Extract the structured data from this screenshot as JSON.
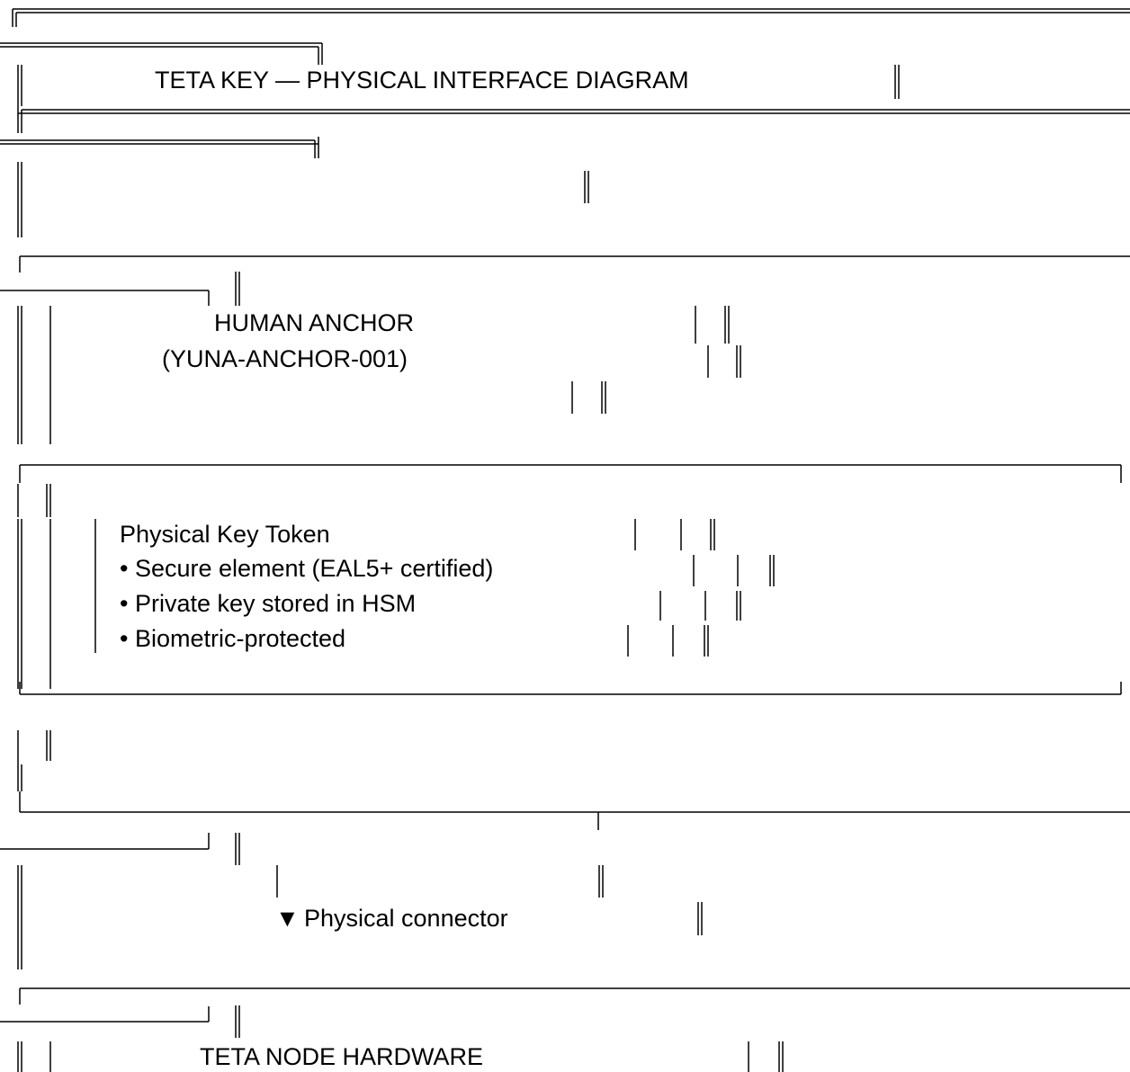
{
  "title": "TETA KEY — PHYSICAL INTERFACE DIAGRAM",
  "human_anchor": {
    "heading": "HUMAN ANCHOR",
    "id": "(YUNA-ANCHOR-001)"
  },
  "key_token": {
    "heading": "Physical Key Token",
    "features": [
      "• Secure element (EAL5+ certified)",
      "• Private key stored in HSM",
      "• Biometric-protected"
    ]
  },
  "connector": {
    "arrow": "▼",
    "label": "Physical connector"
  },
  "node_hardware": {
    "heading": "TETA NODE HARDWARE"
  },
  "colors": {
    "line": "#000000",
    "background": "#ffffff",
    "text": "#000000"
  }
}
